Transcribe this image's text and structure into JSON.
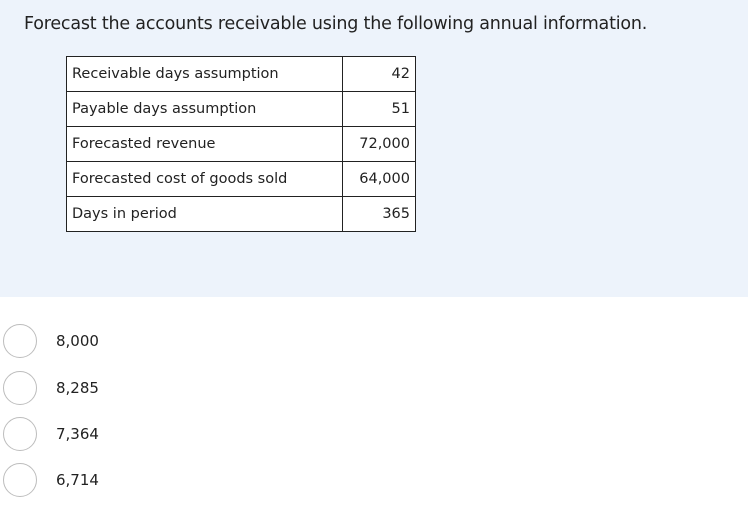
{
  "question": {
    "text": "Forecast the accounts receivable using the following annual information."
  },
  "table": {
    "rows": [
      {
        "label": "Receivable days assumption",
        "value": "42"
      },
      {
        "label": "Payable days assumption",
        "value": "51"
      },
      {
        "label": "Forecasted revenue",
        "value": "72,000"
      },
      {
        "label": "Forecasted cost of goods sold",
        "value": "64,000"
      },
      {
        "label": "Days in period",
        "value": "365"
      }
    ]
  },
  "options": [
    {
      "label": "8,000"
    },
    {
      "label": "8,285"
    },
    {
      "label": "7,364"
    },
    {
      "label": "6,714"
    }
  ],
  "colors": {
    "panel_background": "#edf3fb",
    "radio_border": "#bdbdbd",
    "text": "#222222"
  }
}
